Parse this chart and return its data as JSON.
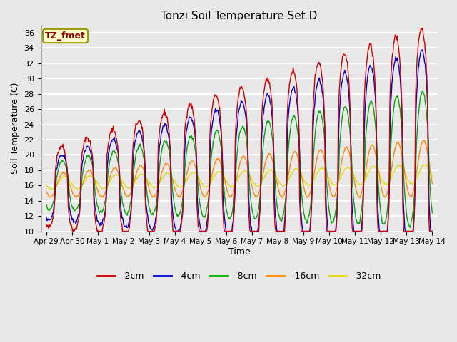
{
  "title": "Tonzi Soil Temperature Set D",
  "xlabel": "Time",
  "ylabel": "Soil Temperature (C)",
  "ylim": [
    10,
    37
  ],
  "yticks": [
    10,
    12,
    14,
    16,
    18,
    20,
    22,
    24,
    26,
    28,
    30,
    32,
    34,
    36
  ],
  "bg_color": "#e8e8e8",
  "grid_color": "white",
  "line_colors": {
    "-2cm": "#cc0000",
    "-4cm": "#0000cc",
    "-8cm": "#00aa00",
    "-16cm": "#ff8800",
    "-32cm": "#dddd00"
  },
  "legend_label": "TZ_fmet",
  "legend_bg": "#ffffcc",
  "legend_border": "#999900",
  "xtick_labels": [
    "Apr 29",
    "Apr 30",
    "May 1",
    "May 2",
    "May 3",
    "May 4",
    "May 5",
    "May 6",
    "May 7",
    "May 8",
    "May 9",
    "May 10",
    "May 11",
    "May 12",
    "May 13",
    "May 14"
  ],
  "figsize": [
    6.4,
    4.8
  ],
  "dpi": 100
}
